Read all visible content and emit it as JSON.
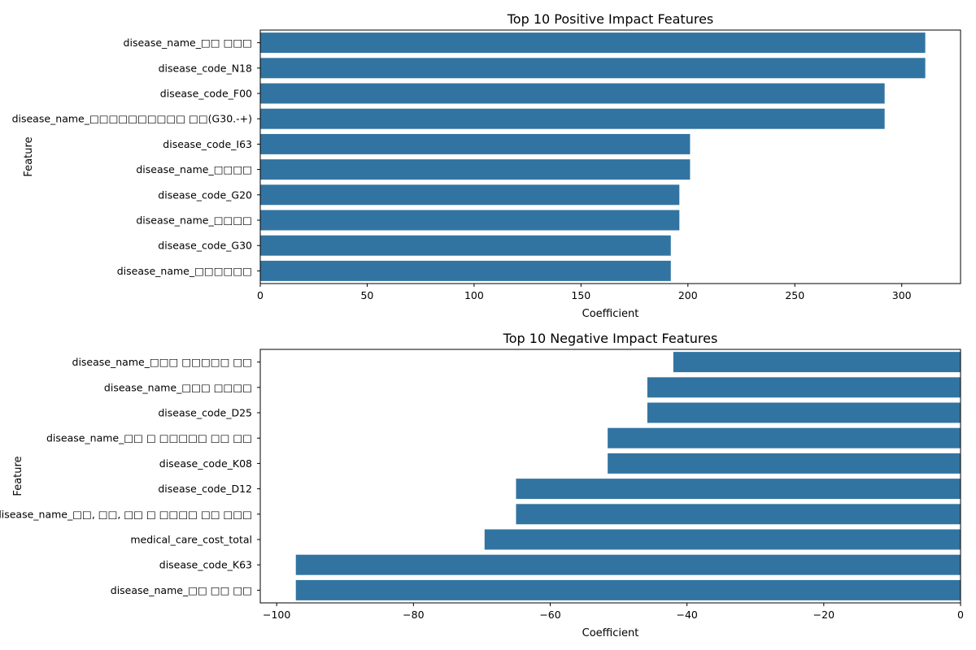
{
  "bar_color": "#3274a1",
  "chart_data": [
    {
      "type": "bar",
      "orientation": "horizontal",
      "title": "Top 10 Positive Impact Features",
      "xlabel": "Coefficient",
      "ylabel": "Feature",
      "xlim": [
        0,
        327.5
      ],
      "xticks": [
        0,
        50,
        100,
        150,
        200,
        250,
        300
      ],
      "xtick_labels": [
        "0",
        "50",
        "100",
        "150",
        "200",
        "250",
        "300"
      ],
      "categories": [
        "disease_name_□□ □□□",
        "disease_code_N18",
        "disease_code_F00",
        "disease_name_□□□□□□□□□□ □□(G30.-+)",
        "disease_code_I63",
        "disease_name_□□□□",
        "disease_code_G20",
        "disease_name_□□□□",
        "disease_code_G30",
        "disease_name_□□□□□□"
      ],
      "values": [
        311,
        311,
        292,
        292,
        201,
        201,
        196,
        196,
        192,
        192
      ]
    },
    {
      "type": "bar",
      "orientation": "horizontal",
      "title": "Top 10 Negative Impact Features",
      "xlabel": "Coefficient",
      "ylabel": "Feature",
      "xlim": [
        -102.4,
        0
      ],
      "xticks": [
        -100,
        -80,
        -60,
        -40,
        -20,
        0
      ],
      "xtick_labels": [
        "−100",
        "−80",
        "−60",
        "−40",
        "−20",
        "0"
      ],
      "categories": [
        "disease_name_□□□ □□□□□ □□",
        "disease_name_□□□ □□□□",
        "disease_code_D25",
        "disease_name_□□ □ □□□□□ □□ □□",
        "disease_code_K08",
        "disease_code_D12",
        "disease_name_□□, □□, □□ □ □□□□ □□ □□□",
        "medical_care_cost_total",
        "disease_code_K63",
        "disease_name_□□ □□ □□"
      ],
      "values": [
        -42.0,
        -45.8,
        -45.8,
        -51.6,
        -51.6,
        -65.0,
        -65.0,
        -69.6,
        -97.2,
        -97.2
      ]
    }
  ]
}
